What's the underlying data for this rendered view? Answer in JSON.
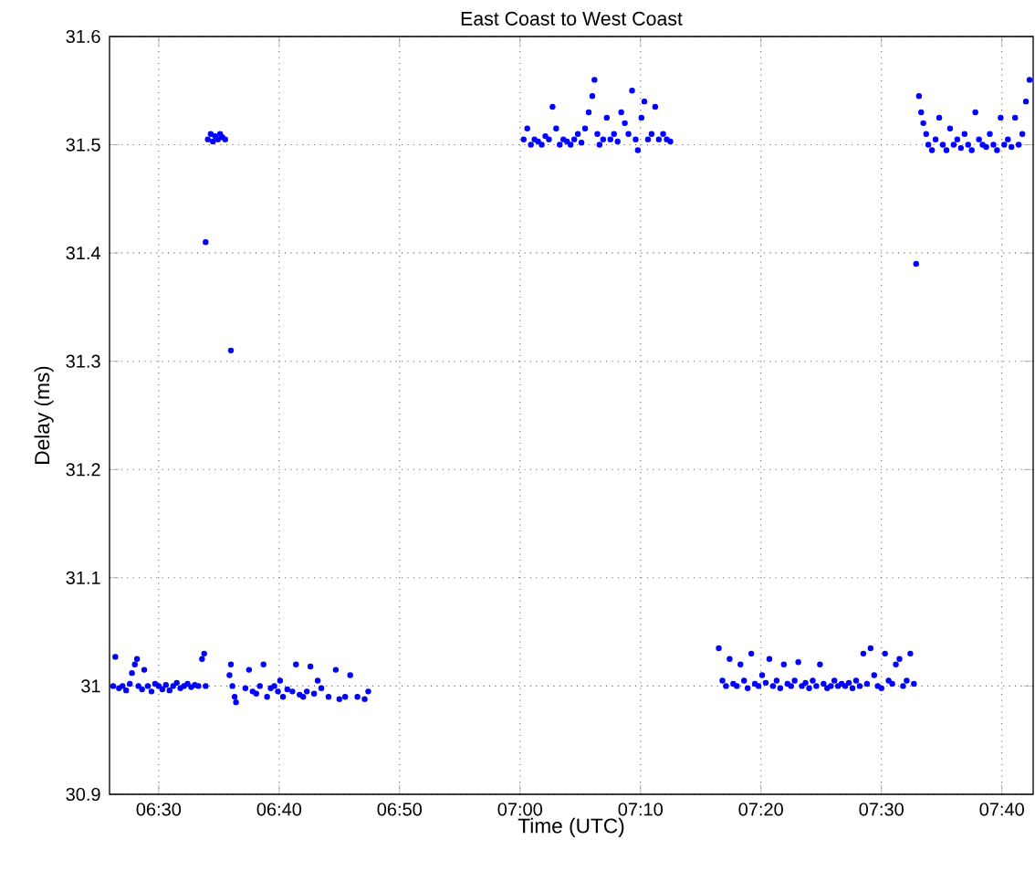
{
  "chart_data": {
    "type": "scatter",
    "title": "East Coast to West Coast",
    "xlabel": "Time (UTC)",
    "ylabel": "Delay (ms)",
    "xlim": [
      6.432,
      7.71
    ],
    "ylim": [
      30.9,
      31.6
    ],
    "xticks": [
      {
        "value": 6.5,
        "label": "06:30"
      },
      {
        "value": 6.6667,
        "label": "06:40"
      },
      {
        "value": 6.8333,
        "label": "06:50"
      },
      {
        "value": 7.0,
        "label": "07:00"
      },
      {
        "value": 7.1667,
        "label": "07:10"
      },
      {
        "value": 7.3333,
        "label": "07:20"
      },
      {
        "value": 7.5,
        "label": "07:30"
      },
      {
        "value": 7.6667,
        "label": "07:40"
      }
    ],
    "yticks": [
      30.9,
      31,
      31.1,
      31.2,
      31.3,
      31.4,
      31.5,
      31.6
    ],
    "grid": true,
    "series": [
      {
        "color": "#0000ff",
        "x": [
          6.437,
          6.44,
          6.445,
          6.45,
          6.455,
          6.46,
          6.463,
          6.467,
          6.47,
          6.472,
          6.477,
          6.48,
          6.485,
          6.49,
          6.495,
          6.5,
          6.505,
          6.51,
          6.515,
          6.52,
          6.525,
          6.53,
          6.535,
          6.54,
          6.545,
          6.55,
          6.555,
          6.56,
          6.563,
          6.565,
          6.568,
          6.572,
          6.575,
          6.578,
          6.582,
          6.585,
          6.588,
          6.592,
          6.565,
          6.6,
          6.598,
          6.6,
          6.602,
          6.605,
          6.607,
          6.62,
          6.625,
          6.63,
          6.635,
          6.64,
          6.645,
          6.65,
          6.655,
          6.66,
          6.665,
          6.668,
          6.672,
          6.678,
          6.685,
          6.69,
          6.695,
          6.7,
          6.705,
          6.71,
          6.715,
          6.72,
          6.725,
          6.735,
          6.745,
          6.75,
          6.758,
          6.765,
          6.775,
          6.785,
          6.79,
          7.005,
          7.01,
          7.015,
          7.02,
          7.025,
          7.03,
          7.035,
          7.04,
          7.045,
          7.05,
          7.055,
          7.06,
          7.065,
          7.07,
          7.075,
          7.08,
          7.085,
          7.09,
          7.095,
          7.1,
          7.103,
          7.107,
          7.11,
          7.115,
          7.12,
          7.125,
          7.13,
          7.135,
          7.14,
          7.145,
          7.15,
          7.155,
          7.16,
          7.163,
          7.168,
          7.172,
          7.177,
          7.182,
          7.187,
          7.192,
          7.198,
          7.203,
          7.208,
          7.275,
          7.28,
          7.285,
          7.29,
          7.295,
          7.3,
          7.305,
          7.31,
          7.315,
          7.32,
          7.325,
          7.33,
          7.335,
          7.34,
          7.345,
          7.35,
          7.355,
          7.36,
          7.365,
          7.37,
          7.375,
          7.38,
          7.385,
          7.39,
          7.395,
          7.4,
          7.405,
          7.41,
          7.415,
          7.42,
          7.425,
          7.43,
          7.435,
          7.44,
          7.445,
          7.45,
          7.455,
          7.46,
          7.465,
          7.47,
          7.475,
          7.48,
          7.485,
          7.49,
          7.495,
          7.5,
          7.505,
          7.51,
          7.515,
          7.52,
          7.525,
          7.53,
          7.535,
          7.54,
          7.545,
          7.548,
          7.552,
          7.555,
          7.558,
          7.562,
          7.565,
          7.57,
          7.575,
          7.58,
          7.585,
          7.59,
          7.595,
          7.6,
          7.605,
          7.61,
          7.615,
          7.62,
          7.625,
          7.63,
          7.635,
          7.64,
          7.645,
          7.65,
          7.655,
          7.66,
          7.665,
          7.67,
          7.675,
          7.68,
          7.685,
          7.69,
          7.695,
          7.7,
          7.705
        ],
        "values": [
          31.0,
          31.027,
          30.998,
          31.0,
          30.996,
          31.002,
          31.012,
          31.02,
          31.025,
          31.0,
          30.997,
          31.015,
          31.0,
          30.995,
          31.002,
          31.0,
          30.997,
          31.001,
          30.996,
          31.0,
          31.003,
          30.998,
          31.0,
          31.002,
          30.999,
          31.001,
          31.0,
          31.025,
          31.03,
          31.0,
          31.505,
          31.51,
          31.503,
          31.508,
          31.505,
          31.51,
          31.507,
          31.505,
          31.41,
          31.31,
          31.01,
          31.02,
          31.0,
          30.99,
          30.985,
          30.998,
          31.015,
          30.995,
          30.993,
          31.0,
          31.02,
          30.99,
          30.998,
          31.0,
          30.995,
          31.005,
          30.99,
          30.997,
          30.995,
          31.02,
          30.992,
          30.99,
          30.995,
          31.018,
          30.993,
          31.005,
          30.998,
          30.99,
          31.015,
          30.988,
          30.99,
          31.01,
          30.99,
          30.988,
          30.995,
          31.505,
          31.515,
          31.5,
          31.505,
          31.503,
          31.5,
          31.508,
          31.505,
          31.535,
          31.515,
          31.5,
          31.505,
          31.503,
          31.5,
          31.505,
          31.51,
          31.502,
          31.515,
          31.53,
          31.545,
          31.56,
          31.51,
          31.5,
          31.505,
          31.525,
          31.505,
          31.51,
          31.503,
          31.53,
          31.52,
          31.51,
          31.55,
          31.505,
          31.495,
          31.525,
          31.54,
          31.505,
          31.51,
          31.535,
          31.505,
          31.51,
          31.505,
          31.503,
          31.035,
          31.005,
          31.0,
          31.025,
          31.002,
          31.0,
          31.02,
          31.005,
          30.998,
          31.03,
          31.002,
          31.0,
          31.01,
          31.003,
          31.025,
          31.0,
          31.005,
          30.998,
          31.02,
          31.002,
          31.0,
          31.005,
          31.022,
          31.0,
          31.003,
          30.998,
          31.005,
          31.0,
          31.02,
          31.002,
          30.998,
          31.0,
          31.005,
          31.0,
          31.002,
          31.0,
          31.003,
          30.998,
          31.005,
          31.0,
          31.03,
          31.002,
          31.035,
          31.01,
          31.0,
          30.998,
          31.03,
          31.005,
          31.002,
          31.02,
          31.025,
          31.0,
          31.005,
          31.03,
          31.002,
          31.39,
          31.545,
          31.53,
          31.52,
          31.51,
          31.5,
          31.495,
          31.505,
          31.525,
          31.5,
          31.495,
          31.515,
          31.5,
          31.505,
          31.497,
          31.51,
          31.5,
          31.495,
          31.53,
          31.505,
          31.5,
          31.498,
          31.51,
          31.5,
          31.495,
          31.525,
          31.5,
          31.505,
          31.498,
          31.525,
          31.5,
          31.51,
          31.54,
          31.56
        ]
      }
    ]
  }
}
